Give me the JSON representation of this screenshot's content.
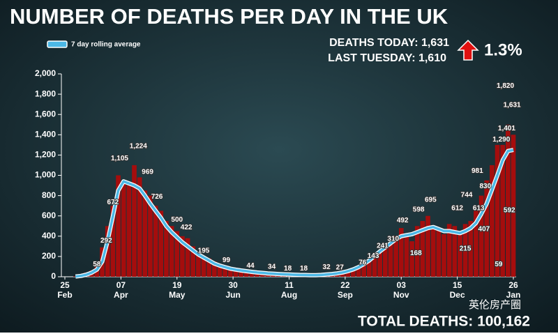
{
  "chart_data": {
    "type": "bar",
    "title": "NUMBER OF DEATHS PER DAY IN THE UK",
    "deaths_today": "DEATHS TODAY: 1,631",
    "last_tuesday": "LAST TUESDAY: 1,610",
    "change": "1.3%",
    "total": "TOTAL DEATHS: 100,162",
    "watermark": "英伦房产圈",
    "bar_color": "#a50d0d",
    "xlim": [
      0,
      336
    ],
    "xticks": [
      {
        "value": 0,
        "label": "25",
        "month": "Feb"
      },
      {
        "value": 42,
        "label": "07",
        "month": "Apr"
      },
      {
        "value": 84,
        "label": "19",
        "month": "May"
      },
      {
        "value": 126,
        "label": "30",
        "month": "Jun"
      },
      {
        "value": 168,
        "label": "11",
        "month": "Aug"
      },
      {
        "value": 210,
        "label": "22",
        "month": "Sep"
      },
      {
        "value": 252,
        "label": "03",
        "month": "Nov"
      },
      {
        "value": 294,
        "label": "15",
        "month": "Dec"
      },
      {
        "value": 336,
        "label": "26",
        "month": "Jan"
      }
    ],
    "ylim": [
      0,
      2000
    ],
    "yticks": [
      0,
      200,
      400,
      600,
      800,
      {
        "value": 1000,
        "label": "1,000"
      },
      {
        "value": 1200,
        "label": "1,200"
      },
      {
        "value": 1400,
        "label": "1,400"
      },
      {
        "value": 1600,
        "label": "1,600"
      },
      {
        "value": 1800,
        "label": "1,800"
      },
      {
        "value": 2000,
        "label": "2,000"
      }
    ],
    "x": [
      8,
      12,
      16,
      20,
      24,
      28,
      32,
      36,
      40,
      44,
      48,
      52,
      56,
      60,
      64,
      68,
      72,
      76,
      80,
      84,
      88,
      92,
      96,
      100,
      104,
      108,
      112,
      116,
      120,
      124,
      128,
      132,
      136,
      140,
      144,
      148,
      152,
      156,
      160,
      164,
      168,
      172,
      176,
      180,
      184,
      188,
      192,
      196,
      200,
      204,
      208,
      212,
      216,
      220,
      224,
      228,
      232,
      236,
      240,
      244,
      248,
      252,
      256,
      260,
      264,
      268,
      272,
      276,
      280,
      284,
      288,
      292,
      296,
      300,
      304,
      308,
      312,
      316,
      320,
      324,
      328,
      332,
      336
    ],
    "bars": [
      5,
      15,
      40,
      60,
      100,
      290,
      500,
      700,
      1000,
      950,
      900,
      1100,
      980,
      850,
      800,
      700,
      650,
      550,
      500,
      450,
      400,
      380,
      300,
      250,
      200,
      180,
      150,
      120,
      100,
      80,
      70,
      60,
      50,
      45,
      40,
      35,
      30,
      28,
      25,
      20,
      18,
      15,
      15,
      15,
      14,
      15,
      20,
      25,
      30,
      35,
      40,
      60,
      70,
      90,
      120,
      150,
      200,
      250,
      300,
      320,
      400,
      480,
      400,
      350,
      500,
      550,
      600,
      500,
      480,
      420,
      520,
      500,
      450,
      520,
      550,
      650,
      800,
      950,
      1100,
      1300,
      1300,
      1500,
      1400
    ],
    "series": [
      {
        "name": "7 day rolling average",
        "color": "#4cb8e6",
        "values": [
          3,
          8,
          20,
          40,
          70,
          150,
          350,
          600,
          850,
          940,
          920,
          900,
          870,
          800,
          720,
          650,
          580,
          500,
          440,
          390,
          340,
          300,
          260,
          220,
          190,
          160,
          130,
          110,
          95,
          80,
          70,
          62,
          55,
          48,
          42,
          38,
          33,
          30,
          27,
          24,
          22,
          20,
          18,
          17,
          16,
          16,
          18,
          22,
          27,
          33,
          42,
          55,
          72,
          95,
          125,
          160,
          205,
          250,
          290,
          330,
          370,
          400,
          410,
          420,
          440,
          460,
          480,
          490,
          470,
          450,
          450,
          440,
          430,
          450,
          480,
          530,
          620,
          720,
          860,
          1000,
          1150,
          1240,
          1250
        ]
      }
    ],
    "annotations": [
      {
        "x": 24,
        "value": 58,
        "label": "58"
      },
      {
        "x": 31,
        "value": 292,
        "label": "292"
      },
      {
        "x": 36,
        "value": 672,
        "label": "672"
      },
      {
        "x": 41,
        "value": 1105,
        "label": "1,105"
      },
      {
        "x": 55,
        "value": 1224,
        "label": "1,224"
      },
      {
        "x": 62,
        "value": 969,
        "label": "969"
      },
      {
        "x": 69,
        "value": 726,
        "label": "726"
      },
      {
        "x": 84,
        "value": 500,
        "label": "500"
      },
      {
        "x": 91,
        "value": 422,
        "label": "422"
      },
      {
        "x": 104,
        "value": 195,
        "label": "195"
      },
      {
        "x": 121,
        "value": 99,
        "label": "99"
      },
      {
        "x": 139,
        "value": 44,
        "label": "44"
      },
      {
        "x": 155,
        "value": 34,
        "label": "34"
      },
      {
        "x": 167,
        "value": 18,
        "label": "18"
      },
      {
        "x": 179,
        "value": 18,
        "label": "18"
      },
      {
        "x": 196,
        "value": 32,
        "label": "32"
      },
      {
        "x": 206,
        "value": 27,
        "label": "27"
      },
      {
        "x": 223,
        "value": 76,
        "label": "76"
      },
      {
        "x": 231,
        "value": 143,
        "label": "143"
      },
      {
        "x": 238,
        "value": 241,
        "label": "241"
      },
      {
        "x": 246,
        "value": 310,
        "label": "310"
      },
      {
        "x": 253,
        "value": 492,
        "label": "492"
      },
      {
        "x": 263,
        "value": 168,
        "label": "168"
      },
      {
        "x": 265,
        "value": 598,
        "label": "598"
      },
      {
        "x": 274,
        "value": 695,
        "label": "695"
      },
      {
        "x": 294,
        "value": 612,
        "label": "612"
      },
      {
        "x": 300,
        "value": 215,
        "label": "215"
      },
      {
        "x": 301,
        "value": 744,
        "label": "744"
      },
      {
        "x": 309,
        "value": 981,
        "label": "981"
      },
      {
        "x": 310,
        "value": 613,
        "label": "613"
      },
      {
        "x": 314,
        "value": 407,
        "label": "407"
      },
      {
        "x": 315,
        "value": 830,
        "label": "830"
      },
      {
        "x": 325,
        "value": 59,
        "label": "59"
      },
      {
        "x": 327,
        "value": 1290,
        "label": "1,290"
      },
      {
        "x": 330,
        "value": 1820,
        "label": "1,820"
      },
      {
        "x": 331,
        "value": 1401,
        "label": "1,401"
      },
      {
        "x": 333,
        "value": 592,
        "label": "592"
      },
      {
        "x": 335,
        "value": 1631,
        "label": "1,631"
      }
    ]
  }
}
